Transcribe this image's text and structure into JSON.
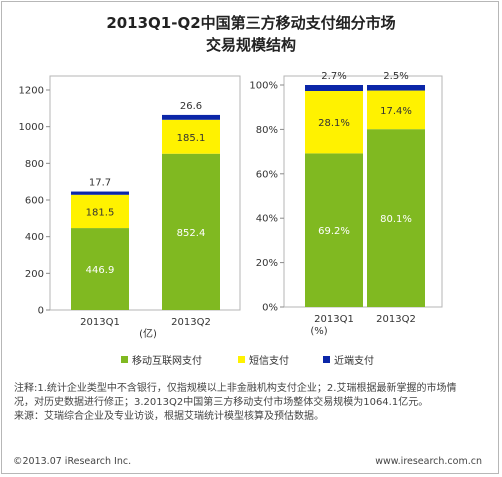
{
  "title": {
    "line1": "2013Q1-Q2中国第三方移动支付细分市场",
    "line2": "交易规模结构"
  },
  "legend": [
    {
      "label": "移动互联网支付",
      "color": "#80b921"
    },
    {
      "label": "短信支付",
      "color": "#fff200"
    },
    {
      "label": "近端支付",
      "color": "#0b26a8"
    }
  ],
  "notes": {
    "line1": "注释:1.统计企业类型中不含银行，仅指规模以上非金融机构支付企业；2.艾瑞根据最新掌握的市场情",
    "line2": "况，对历史数据进行修正；3.2013Q2中国第三方移动支付市场整体交易规模为1064.1亿元。",
    "line3": "来源：艾瑞综合企业及专业访谈，根据艾瑞统计模型核算及预估数据。"
  },
  "footer": {
    "left": "©2013.07 iResearch Inc.",
    "right": "www.iresearch.com.cn"
  },
  "chart_data": [
    {
      "type": "bar",
      "stacked": true,
      "categories": [
        "2013Q1",
        "2013Q2"
      ],
      "series": [
        {
          "name": "移动互联网支付",
          "values": [
            446.9,
            852.4
          ],
          "labels": [
            "446.9",
            "852.4"
          ]
        },
        {
          "name": "短信支付",
          "values": [
            181.5,
            185.1
          ],
          "labels": [
            "181.5",
            "185.1"
          ]
        },
        {
          "name": "近端支付",
          "values": [
            17.7,
            26.6
          ],
          "labels": [
            "17.7",
            "26.6"
          ]
        }
      ],
      "ylim": [
        0,
        1200
      ],
      "yticks": [
        "0",
        "200",
        "400",
        "600",
        "800",
        "1000",
        "1200"
      ],
      "unit": "(亿)"
    },
    {
      "type": "bar",
      "stacked": true,
      "percent": true,
      "categories": [
        "2013Q1",
        "2013Q2"
      ],
      "series": [
        {
          "name": "移动互联网支付",
          "values": [
            69.2,
            80.1
          ],
          "labels": [
            "69.2%",
            "80.1%"
          ]
        },
        {
          "name": "短信支付",
          "values": [
            28.1,
            17.4
          ],
          "labels": [
            "28.1%",
            "17.4%"
          ]
        },
        {
          "name": "近端支付",
          "values": [
            2.7,
            2.5
          ],
          "labels": [
            "2.7%",
            "2.5%"
          ]
        }
      ],
      "ylim": [
        0,
        100
      ],
      "yticks": [
        "0%",
        "20%",
        "40%",
        "60%",
        "80%",
        "100%"
      ],
      "unit": "(%)"
    }
  ]
}
